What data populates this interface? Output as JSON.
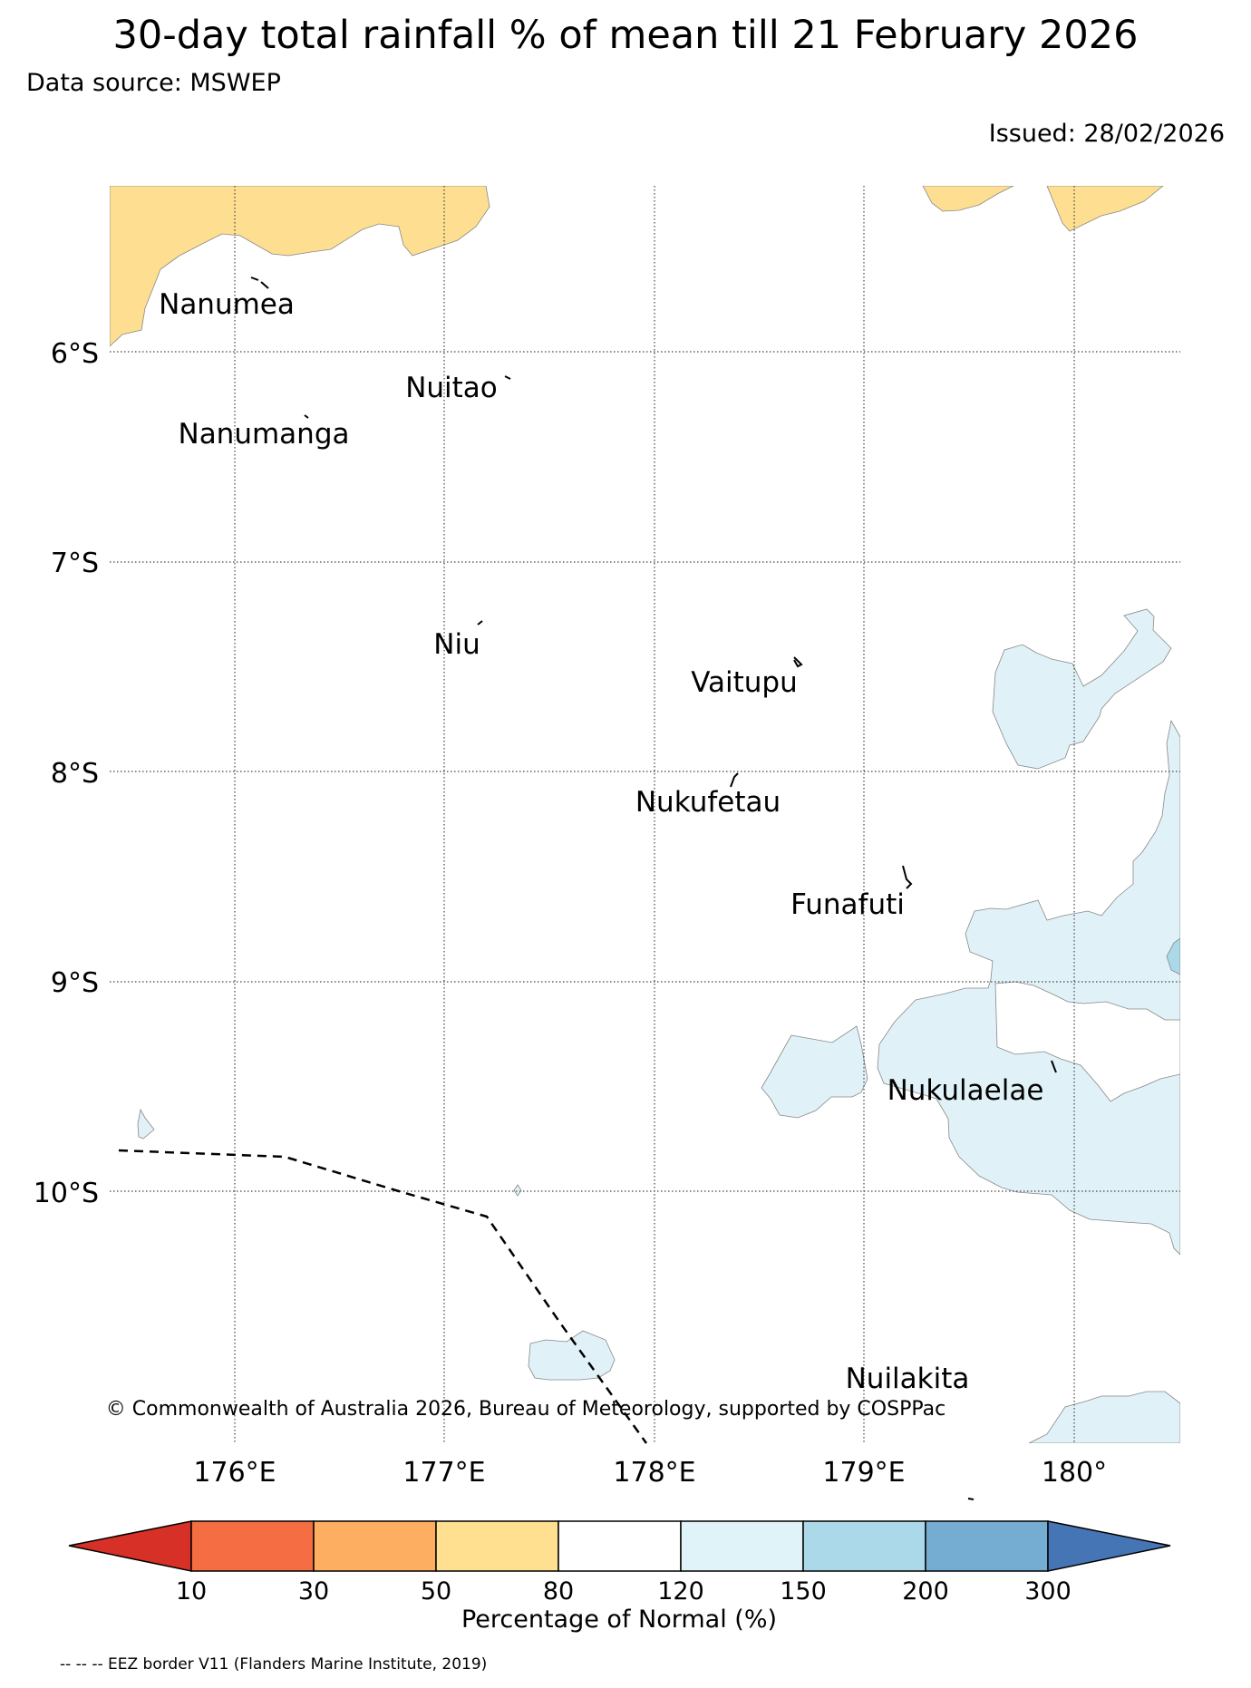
{
  "header": {
    "title": "30-day total rainfall % of mean till 21 February 2026",
    "source": "Data source: MSWEP",
    "issued": "Issued: 28/02/2026"
  },
  "map": {
    "latitude_labels": [
      "6°S",
      "7°S",
      "8°S",
      "9°S",
      "10°S"
    ],
    "longitude_labels": [
      "176°E",
      "177°E",
      "178°E",
      "179°E",
      "180°"
    ],
    "islands": [
      "Nanumea",
      "Nuitao",
      "Nanumanga",
      "Niu",
      "Vaitupu",
      "Nukufetau",
      "Funafuti",
      "Nukulaelae",
      "Nuilakita"
    ],
    "copyright": "© Commonwealth of Australia 2026, Bureau of Meteorology, supported by COSPPac",
    "colors": {
      "50-80": "#fedf91",
      "120-150": "#e0f2f8",
      "150-200": "#abd9e9",
      "eez_border": "#000000",
      "gridline": "#555555"
    }
  },
  "legend": {
    "ticks": [
      "10",
      "30",
      "50",
      "80",
      "120",
      "150",
      "200",
      "300"
    ],
    "title": "Percentage of Normal (%)",
    "colors": [
      "#d73027",
      "#f46d43",
      "#fdae61",
      "#fee090",
      "#ffffff",
      "#e0f3f8",
      "#abd9e9",
      "#74add1",
      "#4575b4"
    ],
    "eez_note": "-- -- -- EEZ border V11 (Flanders Marine Institute, 2019)"
  }
}
